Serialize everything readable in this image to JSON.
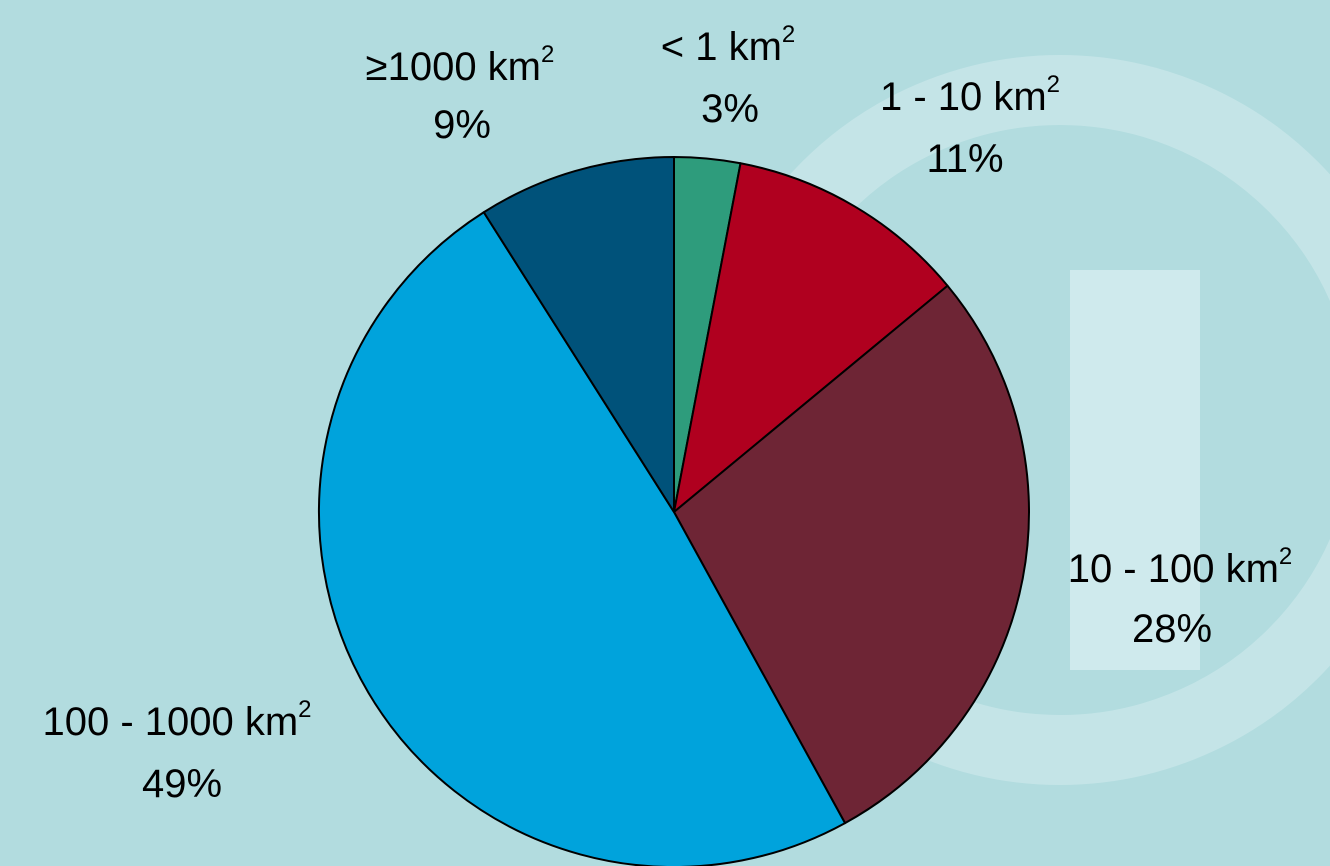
{
  "chart_data": {
    "type": "pie",
    "start_angle_deg": 0,
    "direction": "clockwise",
    "slices": [
      {
        "label": "< 1 km",
        "superscript": "2",
        "percent_label": "3%",
        "value": 3,
        "color": "#2e9c7c"
      },
      {
        "label": "1 - 10 km",
        "superscript": "2",
        "percent_label": "11%",
        "value": 11,
        "color": "#b0001f"
      },
      {
        "label": "10 - 100 km",
        "superscript": "2",
        "percent_label": "28%",
        "value": 28,
        "color": "#6e2535"
      },
      {
        "label": "100 - 1000 km",
        "superscript": "2",
        "percent_label": "49%",
        "value": 49,
        "color": "#00a3dc"
      },
      {
        "label": "≥1000 km",
        "superscript": "2",
        "percent_label": "9%",
        "value": 9,
        "color": "#00527a"
      }
    ],
    "title": "",
    "legend": "none"
  },
  "colors": {
    "background": "#b2dcdf",
    "watermark": "#cfeaec",
    "slice_border": "#000000"
  }
}
